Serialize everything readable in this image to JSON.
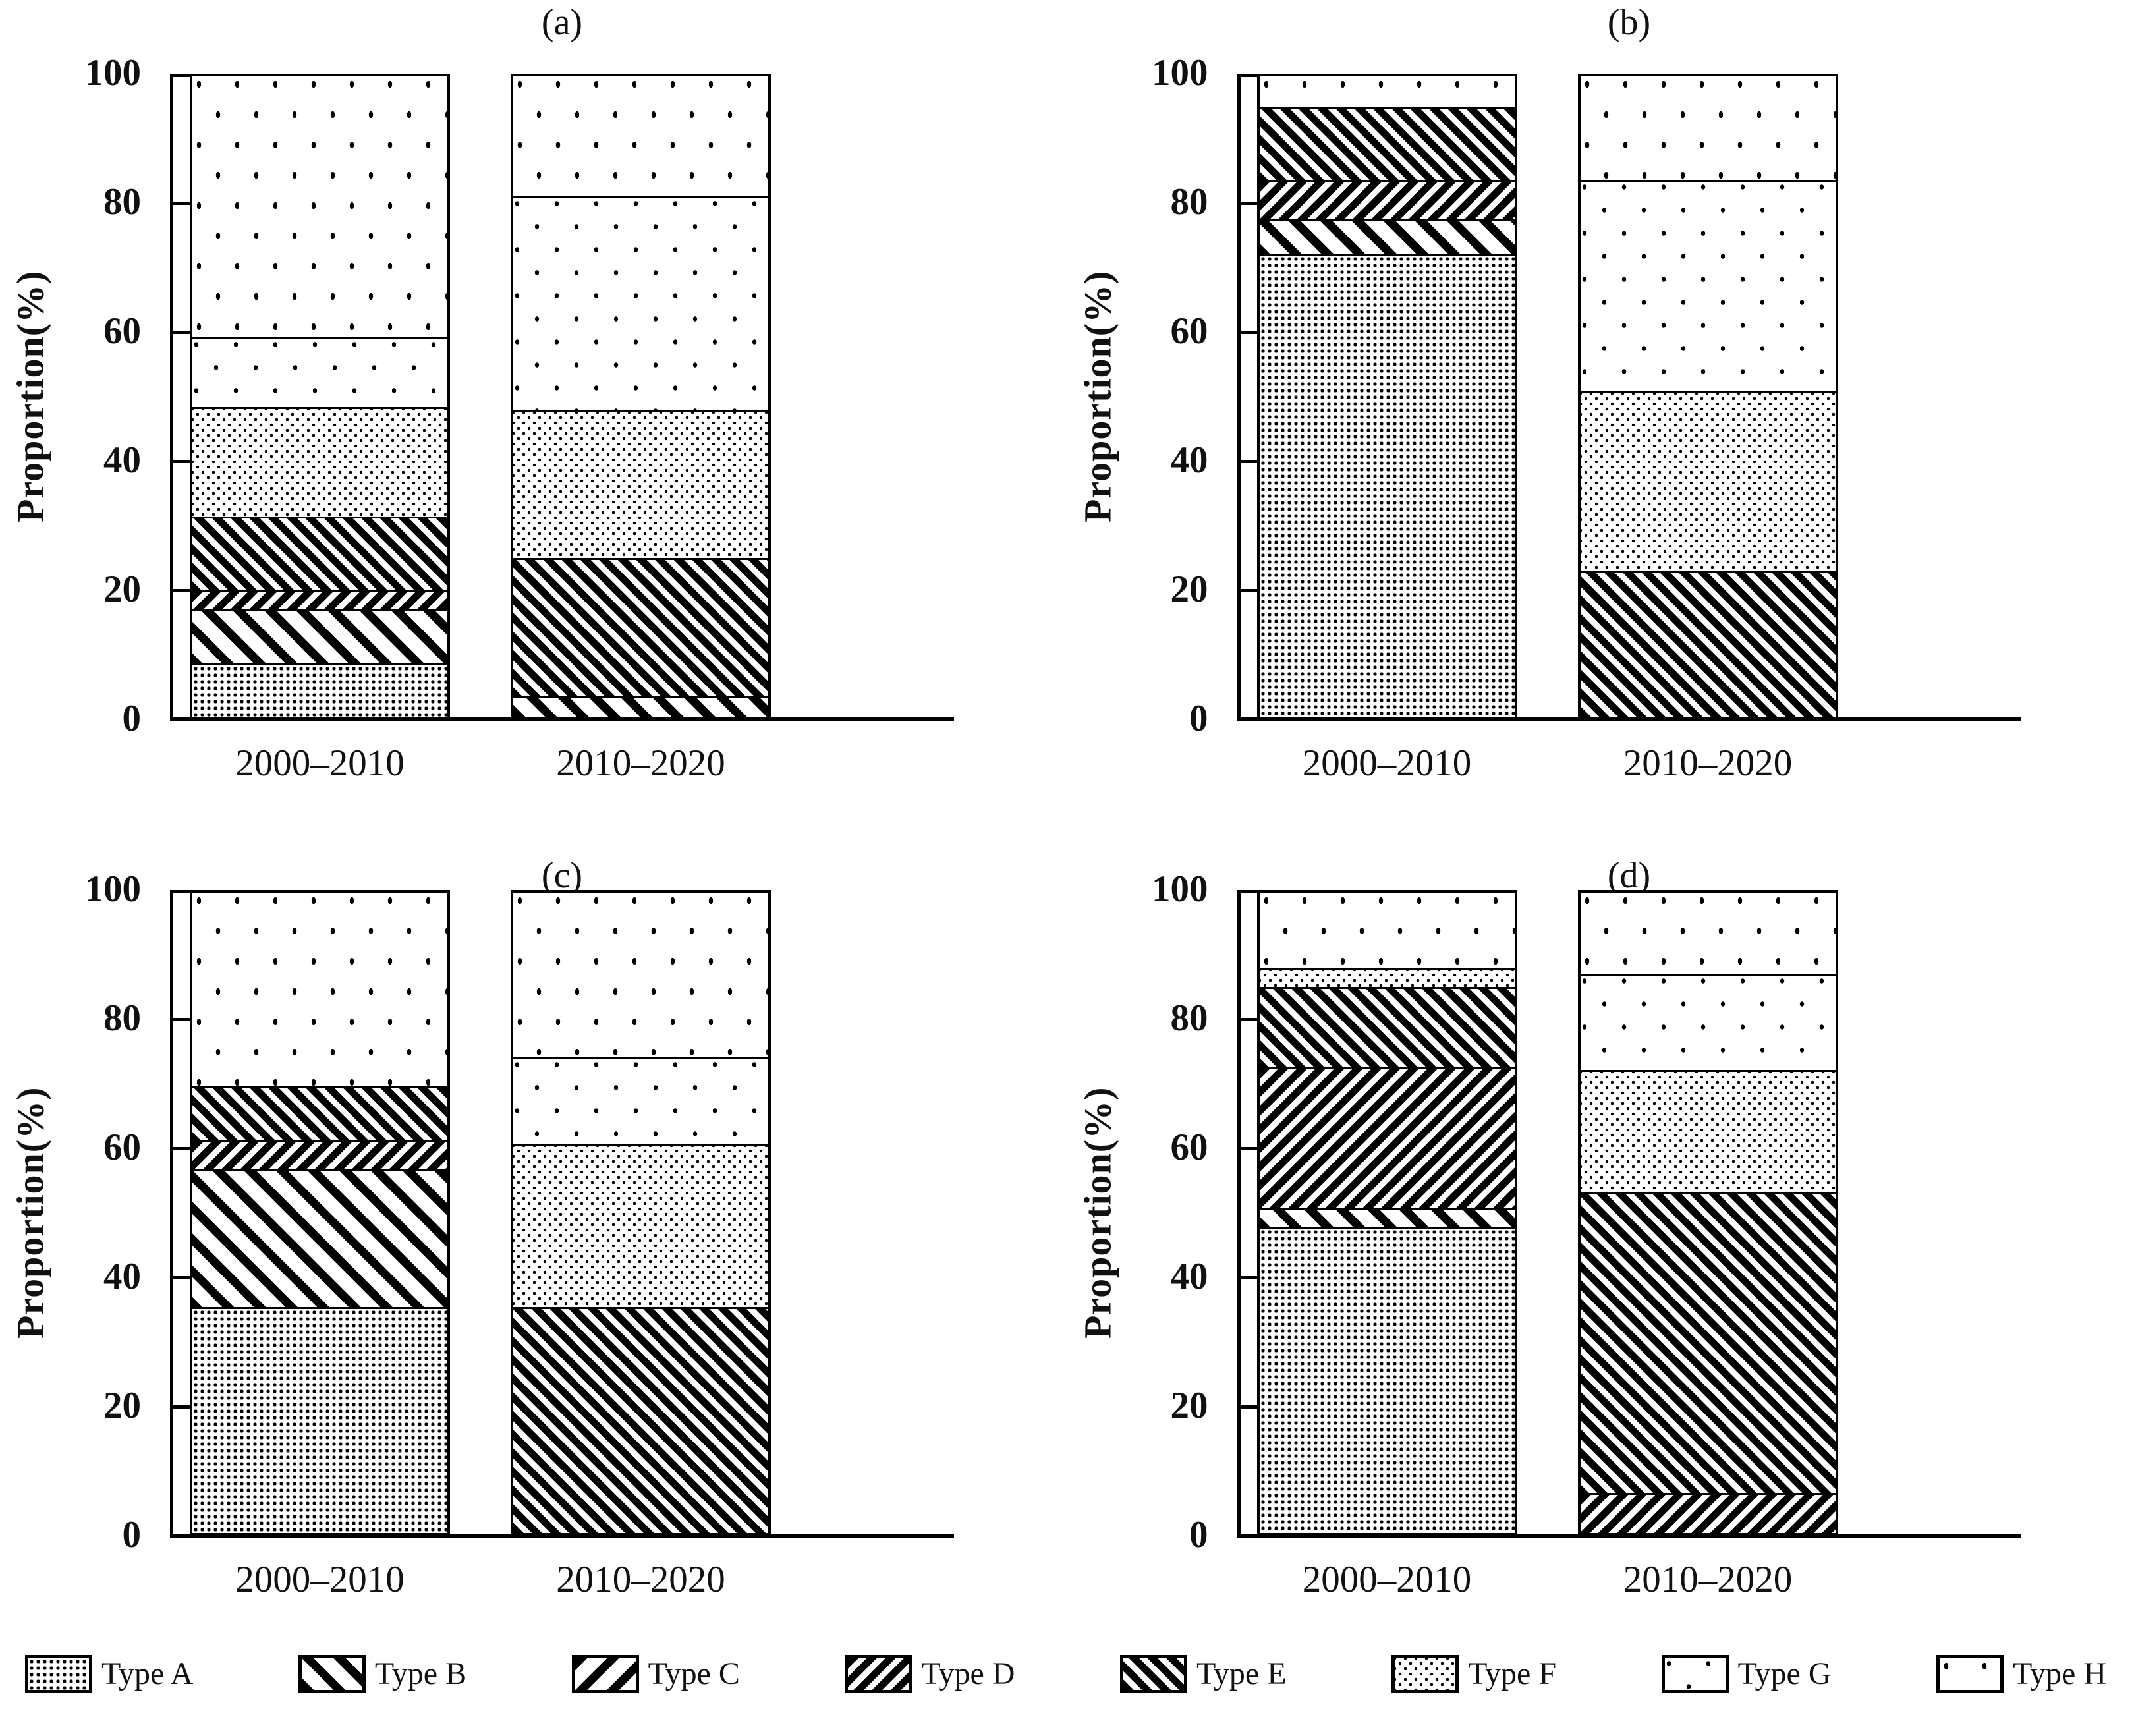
{
  "figure": {
    "y_axis_label": "Proportion(%)",
    "y_ticks": [
      0,
      20,
      40,
      60,
      80,
      100
    ],
    "x_categories": [
      "2000–2010",
      "2010–2020"
    ],
    "panel_titles": [
      "(a)",
      "(b)",
      "(c)",
      "(d)"
    ],
    "stack_order": "bottom-to-top Type A through Type H",
    "colors": {
      "ink": "#000000",
      "background": "#ffffff"
    }
  },
  "legend": {
    "items": [
      {
        "id": "A",
        "label": "Type A",
        "pattern": "dense-square-dots"
      },
      {
        "id": "B",
        "label": "Type B",
        "pattern": "bold-backslash-stripes"
      },
      {
        "id": "C",
        "label": "Type C",
        "pattern": "bold-forwardslash-stripes"
      },
      {
        "id": "D",
        "label": "Type D",
        "pattern": "thin-forwardslash-stripes"
      },
      {
        "id": "E",
        "label": "Type E",
        "pattern": "thin-backslash-stripes"
      },
      {
        "id": "F",
        "label": "Type F",
        "pattern": "medium-dots"
      },
      {
        "id": "G",
        "label": "Type G",
        "pattern": "sparse-dots"
      },
      {
        "id": "H",
        "label": "Type H",
        "pattern": "very-sparse-dots"
      }
    ]
  },
  "chart_data": [
    {
      "type": "bar",
      "stacked": true,
      "panel": "(a)",
      "title": "(a)",
      "ylabel": "Proportion(%)",
      "xlabel": "",
      "ylim": [
        0,
        100
      ],
      "unit": "%",
      "grid": false,
      "categories": [
        "2000–2010",
        "2010–2020"
      ],
      "series": [
        {
          "name": "Type A",
          "pattern": "dense-square-dots",
          "values": [
            8,
            0
          ]
        },
        {
          "name": "Type B",
          "pattern": "bold-backslash-stripes",
          "values": [
            8.5,
            3
          ]
        },
        {
          "name": "Type C",
          "pattern": "bold-forwardslash-stripes",
          "values": [
            0,
            0
          ]
        },
        {
          "name": "Type D",
          "pattern": "thin-forwardslash-stripes",
          "values": [
            3,
            0
          ]
        },
        {
          "name": "Type E",
          "pattern": "thin-backslash-stripes",
          "values": [
            11.5,
            21.5
          ]
        },
        {
          "name": "Type F",
          "pattern": "medium-dots",
          "values": [
            17,
            23
          ]
        },
        {
          "name": "Type G",
          "pattern": "sparse-dots",
          "values": [
            11,
            33.5
          ]
        },
        {
          "name": "Type H",
          "pattern": "very-sparse-dots",
          "values": [
            41,
            19
          ]
        }
      ]
    },
    {
      "type": "bar",
      "stacked": true,
      "panel": "(b)",
      "title": "(b)",
      "ylabel": "Proportion(%)",
      "xlabel": "",
      "ylim": [
        0,
        100
      ],
      "unit": "%",
      "grid": false,
      "categories": [
        "2000–2010",
        "2010–2020"
      ],
      "series": [
        {
          "name": "Type A",
          "pattern": "dense-square-dots",
          "values": [
            72,
            0
          ]
        },
        {
          "name": "Type B",
          "pattern": "bold-backslash-stripes",
          "values": [
            5.5,
            0
          ]
        },
        {
          "name": "Type C",
          "pattern": "bold-forwardslash-stripes",
          "values": [
            0,
            0
          ]
        },
        {
          "name": "Type D",
          "pattern": "thin-forwardslash-stripes",
          "values": [
            6,
            0
          ]
        },
        {
          "name": "Type E",
          "pattern": "thin-backslash-stripes",
          "values": [
            11.5,
            22.5
          ]
        },
        {
          "name": "Type F",
          "pattern": "medium-dots",
          "values": [
            0,
            28
          ]
        },
        {
          "name": "Type G",
          "pattern": "sparse-dots",
          "values": [
            0,
            33
          ]
        },
        {
          "name": "Type H",
          "pattern": "very-sparse-dots",
          "values": [
            5,
            16.5
          ]
        }
      ]
    },
    {
      "type": "bar",
      "stacked": true,
      "panel": "(c)",
      "title": "(c)",
      "ylabel": "Proportion(%)",
      "xlabel": "",
      "ylim": [
        0,
        100
      ],
      "unit": "%",
      "grid": false,
      "categories": [
        "2000–2010",
        "2010–2020"
      ],
      "series": [
        {
          "name": "Type A",
          "pattern": "dense-square-dots",
          "values": [
            35,
            0
          ]
        },
        {
          "name": "Type B",
          "pattern": "bold-backslash-stripes",
          "values": [
            21.5,
            0
          ]
        },
        {
          "name": "Type C",
          "pattern": "bold-forwardslash-stripes",
          "values": [
            0,
            0
          ]
        },
        {
          "name": "Type D",
          "pattern": "thin-forwardslash-stripes",
          "values": [
            4.5,
            0
          ]
        },
        {
          "name": "Type E",
          "pattern": "thin-backslash-stripes",
          "values": [
            8.5,
            35
          ]
        },
        {
          "name": "Type F",
          "pattern": "medium-dots",
          "values": [
            0,
            25.5
          ]
        },
        {
          "name": "Type G",
          "pattern": "sparse-dots",
          "values": [
            0,
            13.5
          ]
        },
        {
          "name": "Type H",
          "pattern": "very-sparse-dots",
          "values": [
            30.5,
            26
          ]
        }
      ]
    },
    {
      "type": "bar",
      "stacked": true,
      "panel": "(d)",
      "title": "(d)",
      "ylabel": "Proportion(%)",
      "xlabel": "",
      "ylim": [
        0,
        100
      ],
      "unit": "%",
      "grid": false,
      "categories": [
        "2000–2010",
        "2010–2020"
      ],
      "series": [
        {
          "name": "Type A",
          "pattern": "dense-square-dots",
          "values": [
            47.5,
            0
          ]
        },
        {
          "name": "Type B",
          "pattern": "bold-backslash-stripes",
          "values": [
            3,
            0
          ]
        },
        {
          "name": "Type C",
          "pattern": "bold-forwardslash-stripes",
          "values": [
            0,
            0
          ]
        },
        {
          "name": "Type D",
          "pattern": "thin-forwardslash-stripes",
          "values": [
            22,
            6
          ]
        },
        {
          "name": "Type E",
          "pattern": "thin-backslash-stripes",
          "values": [
            12.5,
            47
          ]
        },
        {
          "name": "Type F",
          "pattern": "medium-dots",
          "values": [
            3,
            19
          ]
        },
        {
          "name": "Type G",
          "pattern": "sparse-dots",
          "values": [
            0,
            15
          ]
        },
        {
          "name": "Type H",
          "pattern": "very-sparse-dots",
          "values": [
            12,
            13
          ]
        }
      ]
    }
  ]
}
